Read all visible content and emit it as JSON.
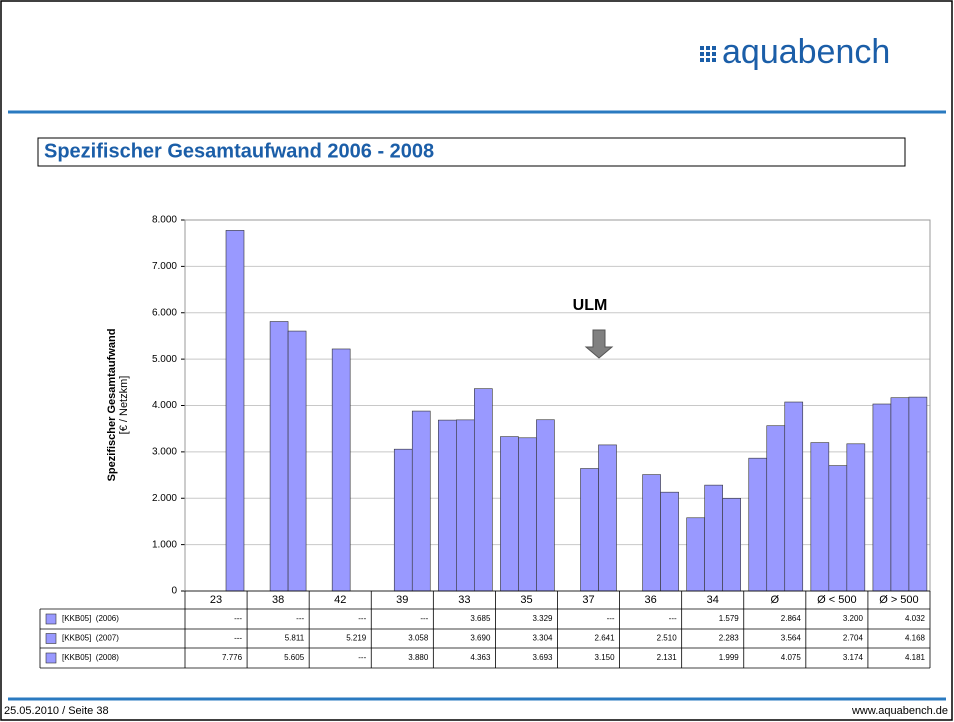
{
  "logo": "aquabench",
  "footer": {
    "left": "25.05.2010 / Seite 38",
    "right": "www.aquabench.de"
  },
  "chart_data": {
    "type": "bar",
    "title": "Spezifischer Gesamtaufwand 2006 - 2008",
    "ylabel": "Spezifischer Gesamtaufwand",
    "ylabel2": "[€ / Netzkm]",
    "annotation": "ULM",
    "categories": [
      "23",
      "38",
      "42",
      "39",
      "33",
      "35",
      "37",
      "36",
      "34",
      "Ø",
      "Ø < 500",
      "Ø > 500"
    ],
    "series": [
      {
        "name": "[KKB05]  (2006)",
        "color": "#9999ff",
        "values": [
          null,
          null,
          null,
          null,
          3685,
          3329,
          null,
          null,
          1579,
          2864,
          3200,
          4032
        ],
        "value_labels": [
          "---",
          "---",
          "---",
          "---",
          "3.685",
          "3.329",
          "---",
          "---",
          "1.579",
          "2.864",
          "3.200",
          "4.032"
        ]
      },
      {
        "name": "[KKB05]  (2007)",
        "color": "#9999ff",
        "values": [
          null,
          5811,
          5219,
          3058,
          3690,
          3304,
          2641,
          2510,
          2283,
          3564,
          2704,
          4168
        ],
        "value_labels": [
          "---",
          "5.811",
          "5.219",
          "3.058",
          "3.690",
          "3.304",
          "2.641",
          "2.510",
          "2.283",
          "3.564",
          "2.704",
          "4.168"
        ]
      },
      {
        "name": "[KKB05]  (2008)",
        "color": "#9999ff",
        "values": [
          7776,
          5605,
          null,
          3880,
          4363,
          3693,
          3150,
          2131,
          1999,
          4075,
          3174,
          4181
        ],
        "value_labels": [
          "7.776",
          "5.605",
          "---",
          "3.880",
          "4.363",
          "3.693",
          "3.150",
          "2.131",
          "1.999",
          "4.075",
          "3.174",
          "4.181"
        ]
      }
    ],
    "ylim": [
      0,
      8000
    ],
    "yticks": [
      0,
      {
        "value": 1000,
        "label": "1.000"
      },
      {
        "value": 2000,
        "label": "2.000"
      },
      {
        "value": 3000,
        "label": "3.000"
      },
      {
        "value": 4000,
        "label": "4.000"
      },
      {
        "value": 5000,
        "label": "5.000"
      },
      {
        "value": 6000,
        "label": "6.000"
      },
      {
        "value": 7000,
        "label": "7.000"
      },
      {
        "value": 8000,
        "label": "8.000"
      }
    ],
    "grid": true
  }
}
